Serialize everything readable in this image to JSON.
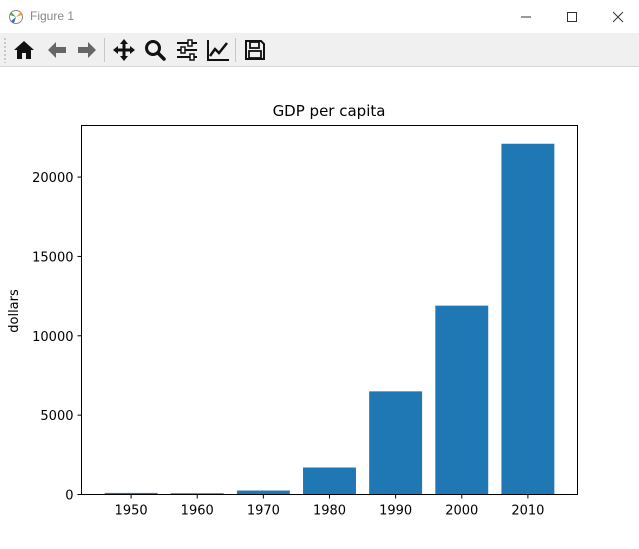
{
  "window": {
    "title": "Figure 1",
    "controls": [
      "minimize",
      "maximize",
      "close"
    ]
  },
  "toolbar": {
    "tools": [
      {
        "name": "home-icon",
        "tooltip": "Home"
      },
      {
        "name": "back-arrow-icon",
        "tooltip": "Back"
      },
      {
        "name": "forward-arrow-icon",
        "tooltip": "Forward"
      },
      {
        "name": "pan-move-icon",
        "tooltip": "Pan"
      },
      {
        "name": "zoom-magnifier-icon",
        "tooltip": "Zoom"
      },
      {
        "name": "configure-subplots-icon",
        "tooltip": "Subplots"
      },
      {
        "name": "edit-axis-line-icon",
        "tooltip": "Customize"
      },
      {
        "name": "save-floppy-icon",
        "tooltip": "Save"
      }
    ]
  },
  "chart_data": {
    "type": "bar",
    "title": "GDP per capita",
    "xlabel": "",
    "ylabel": "dollars",
    "categories": [
      "1950",
      "1960",
      "1970",
      "1980",
      "1990",
      "2000",
      "2010"
    ],
    "values": [
      100,
      80,
      250,
      1700,
      6500,
      11900,
      22100
    ],
    "ylim": [
      0,
      23250
    ],
    "yticks": [
      0,
      5000,
      10000,
      15000,
      20000
    ],
    "bar_color": "#1f77b4",
    "grid": false,
    "legend": "none"
  }
}
